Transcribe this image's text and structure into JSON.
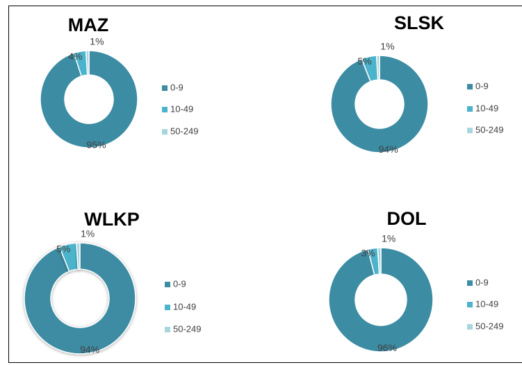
{
  "chart_data": [
    {
      "type": "donut",
      "title": "MAZ",
      "categories": [
        "0-9",
        "10-49",
        "50-249"
      ],
      "values": [
        95,
        4,
        1
      ],
      "value_labels": [
        "95%",
        "4%",
        "1%"
      ],
      "colors": [
        "#3c8ca3",
        "#4bb3cb",
        "#a8d6df"
      ]
    },
    {
      "type": "donut",
      "title": "SLSK",
      "categories": [
        "0-9",
        "10-49",
        "50-249"
      ],
      "values": [
        94,
        5,
        1
      ],
      "value_labels": [
        "94%",
        "5%",
        "1%"
      ],
      "colors": [
        "#3c8ca3",
        "#4bb3cb",
        "#a8d6df"
      ]
    },
    {
      "type": "donut",
      "title": "WLKP",
      "categories": [
        "0-9",
        "10-49",
        "50-249"
      ],
      "values": [
        94,
        5,
        1
      ],
      "value_labels": [
        "94%",
        "5%",
        "1%"
      ],
      "colors": [
        "#3c8ca3",
        "#4bb3cb",
        "#a8d6df"
      ]
    },
    {
      "type": "donut",
      "title": "DOL",
      "categories": [
        "0-9",
        "10-49",
        "50-249"
      ],
      "values": [
        96,
        3,
        1
      ],
      "value_labels": [
        "96%",
        "3%",
        "1%"
      ],
      "colors": [
        "#3c8ca3",
        "#4bb3cb",
        "#a8d6df"
      ]
    }
  ]
}
